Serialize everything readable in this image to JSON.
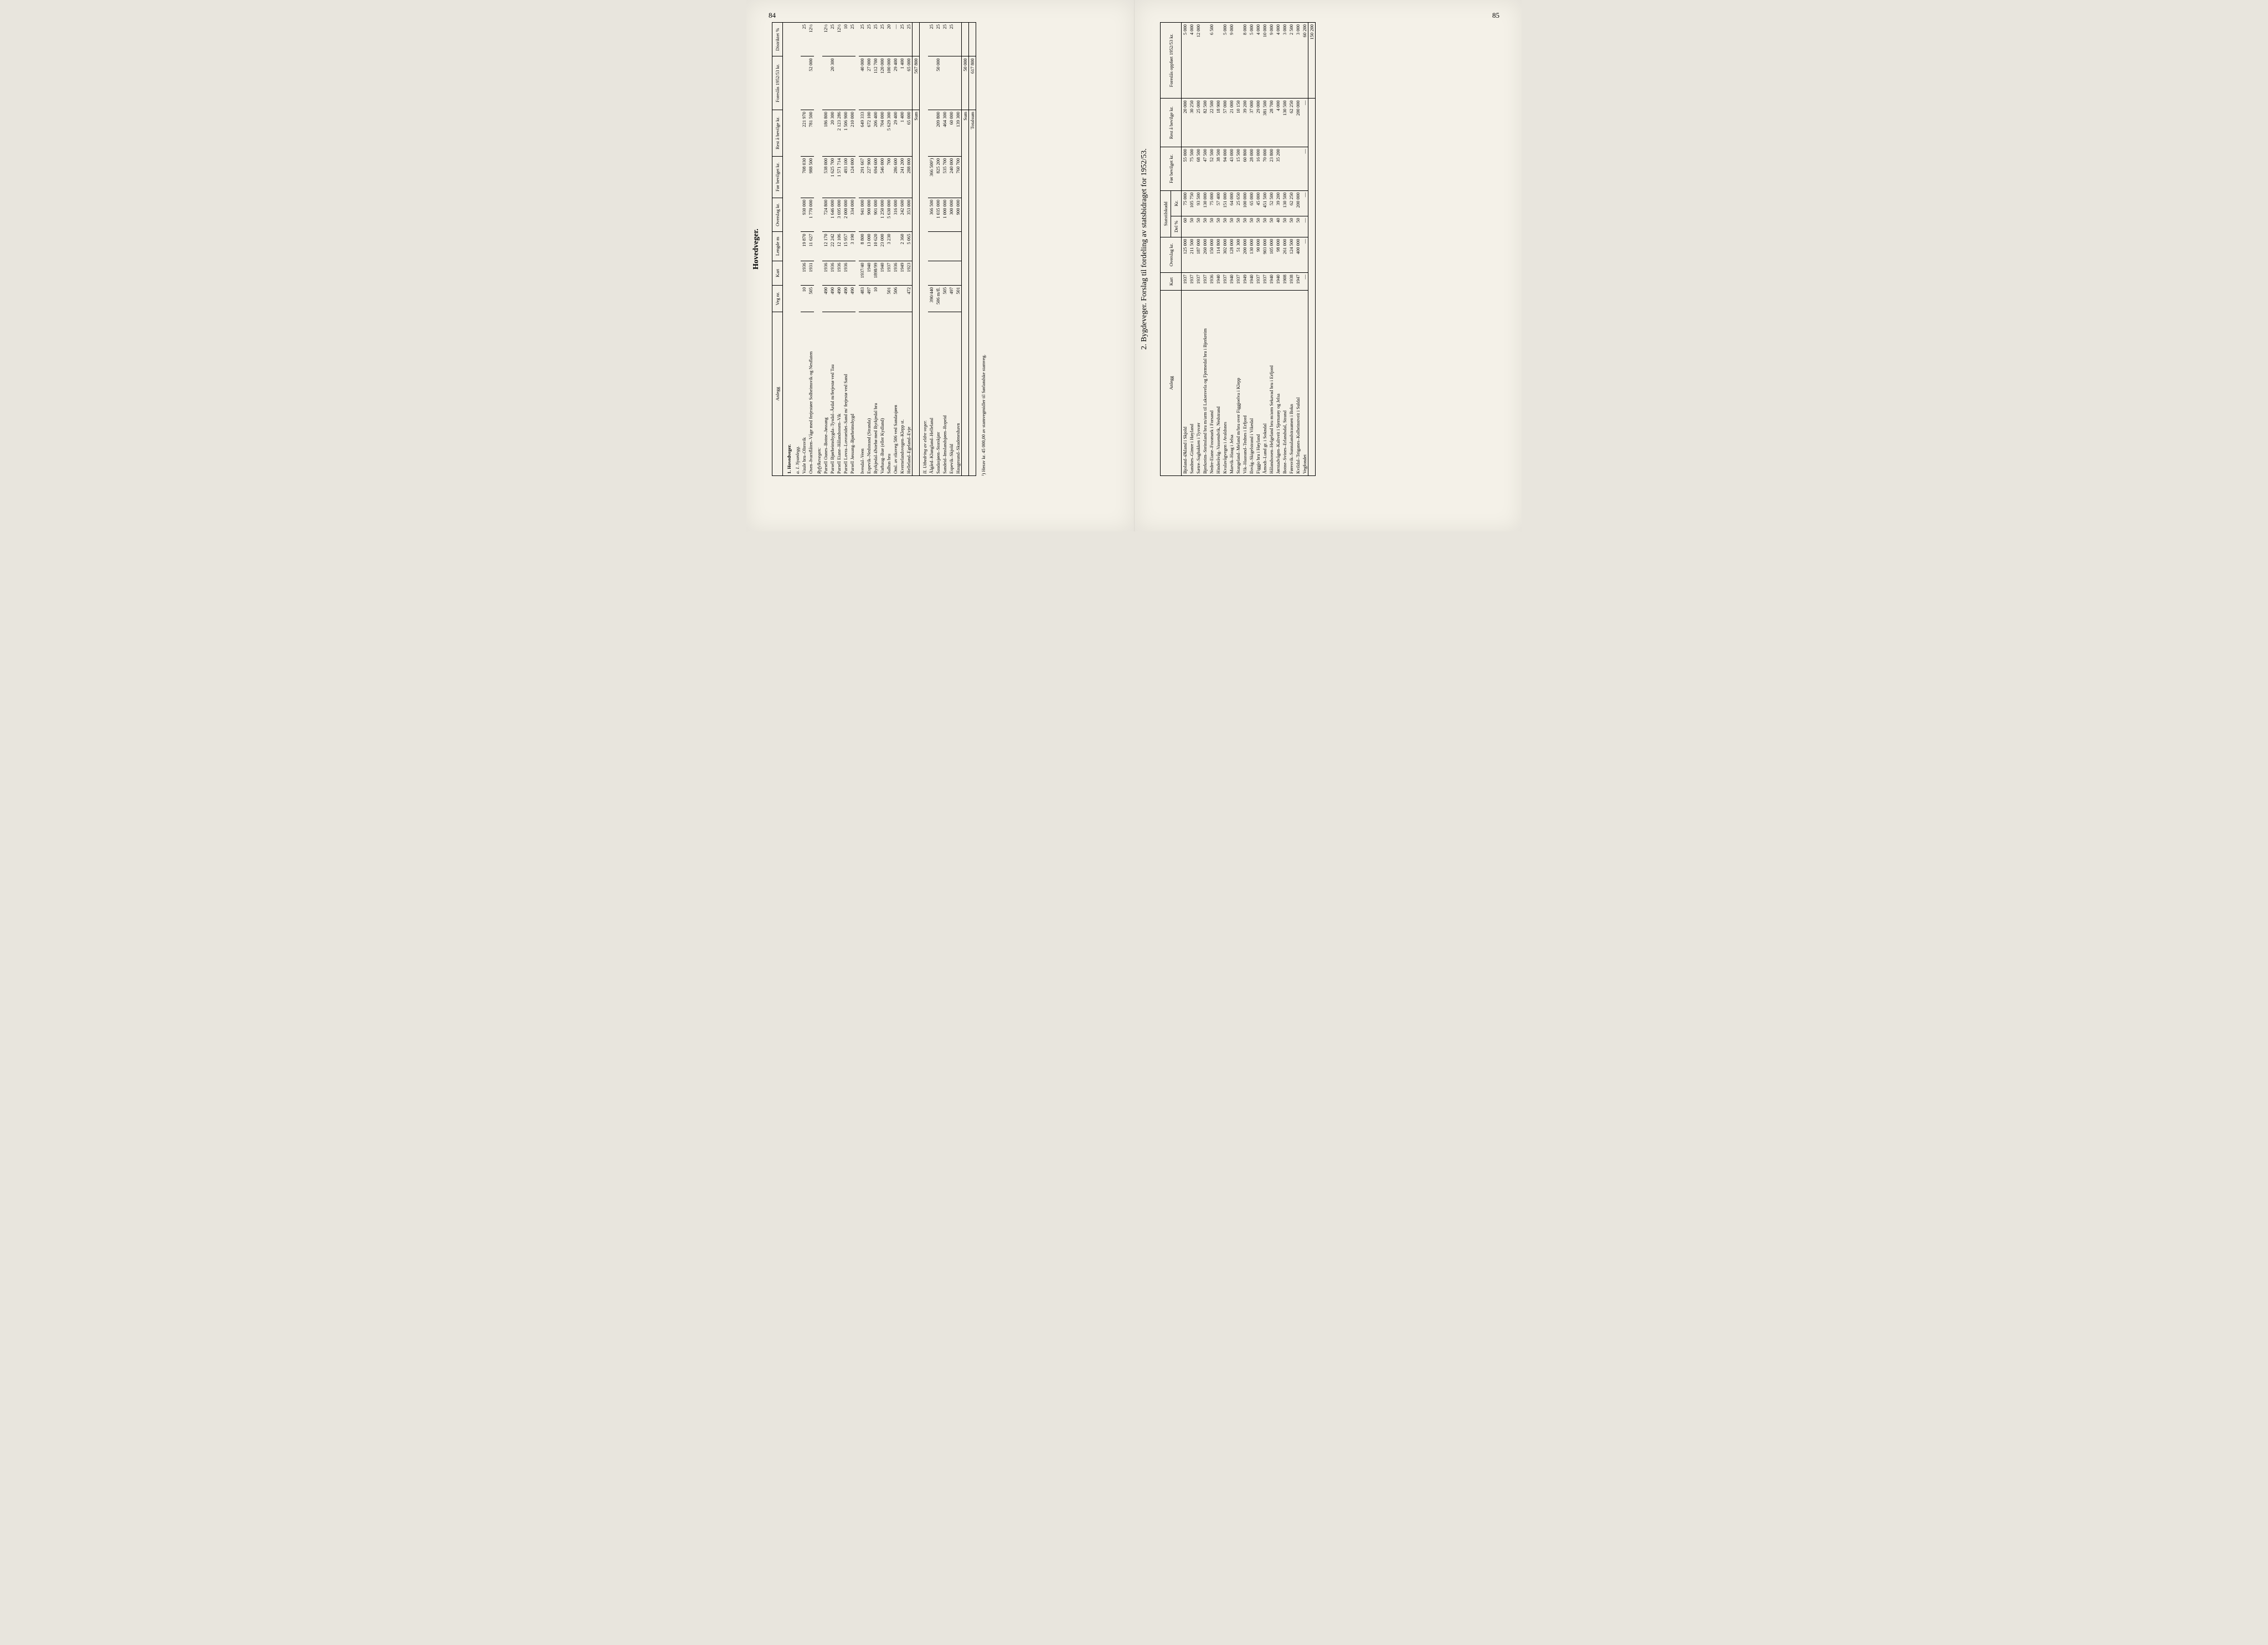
{
  "page_left_num": "84",
  "page_right_num": "85",
  "left": {
    "title": "Hovedveger.",
    "headers": [
      "Anlegg",
      "Veg nr.",
      "Kart",
      "Lengde m",
      "Overslag kr.",
      "Før bevilget kr.",
      "Rest å bevilge kr.",
      "Foreslås 1952/53 kr.",
      "Distriktet %"
    ],
    "section1": "1.  Hovedveger.",
    "sub_a": "a.  I. Nyanlegg.",
    "rows_a": [
      {
        "name": "Vaule bru–Oltesvik",
        "veg": "10",
        "kart": "1936",
        "len": "19 870",
        "ovs": "930 000",
        "for": "708 030",
        "rest": "221 970",
        "fores": "",
        "pct": "25"
      },
      {
        "name": "Osen–Ivarsflåten–Våge med ferjestøer Solheimsvik og Nesflaten",
        "veg": "505",
        "kart": "1931",
        "len": "11 627",
        "ovs": "1 770 000",
        "for": "988 500",
        "rest": "781 500",
        "fores": "52 000",
        "pct": "12½"
      }
    ],
    "ryf_head": "Ryfylkevegen:",
    "rows_ryf": [
      {
        "name": "Parsell Oanes–Botne–Jøssang",
        "veg": "490",
        "kart": "1936",
        "len": "12 170",
        "ovs": "724 800",
        "for": "538 000",
        "rest": "186 800",
        "fores": "",
        "pct": "12½"
      },
      {
        "name": "Parsell Bjørheimsbygda–Tysdal–Årdal m/ferjestø ved Tau",
        "veg": "490",
        "kart": "1936",
        "len": "22 242",
        "ovs": "1 646 000",
        "for": "1 625 700",
        "rest": "20 300",
        "fores": "20 300",
        "pct": "25"
      },
      {
        "name": "Parsell Eiane–Hålandsosen–Vik",
        "veg": "490",
        "kart": "1936",
        "len": "12 106",
        "ovs": "3 695 000",
        "for": "1 571 714",
        "rest": "2 123 286",
        "fores": "",
        "pct": "12½"
      },
      {
        "name": "Parsell Lovra–Lovraeidet–Sand m/ ferjestø ved Sand",
        "veg": "490",
        "kart": "1936",
        "len": "15 957",
        "ovs": "2 000 000",
        "for": "493 100",
        "rest": "1 506 900",
        "fores": "",
        "pct": "10"
      },
      {
        "name": "Parsell Jøssang–Bjørheimsbygd",
        "veg": "490",
        "kart": "",
        "len": "3 190",
        "ovs": "334 000",
        "for": "124 000",
        "rest": "210 000",
        "fores": "",
        "pct": "25"
      }
    ],
    "rows_a2": [
      {
        "name": "Ivesdal–Veen",
        "veg": "483",
        "kart": "1937/40",
        "len": "8 800",
        "ovs": "941 000",
        "for": "291 667",
        "rest": "649 333",
        "fores": "40 000",
        "pct": "25"
      },
      {
        "name": "Espevik–Nedstrand (Stranda)",
        "veg": "497",
        "kart": "1940",
        "len": "13 000",
        "ovs": "900 000",
        "for": "227 900",
        "rest": "672 100",
        "fores": "27 000",
        "pct": "25"
      },
      {
        "name": "Byrkjedal–Østebø med Byrkjedal bru",
        "veg": "10",
        "kart": "1898/99",
        "len": "10 620",
        "ovs": "901 000",
        "for": "694 600",
        "rest": "206 400",
        "fores": "112 700",
        "pct": "25"
      },
      {
        "name": "Varhaug–Bue (eller Kydland)",
        "veg": "",
        "kart": "1940",
        "len": "23 000",
        "ovs": "1 250 000",
        "for": "546 000",
        "rest": "704 000",
        "fores": "120 000",
        "pct": "25"
      },
      {
        "name": "Salhus bru",
        "veg": "501",
        "kart": "1937",
        "len": "3 230",
        "ovs": "5 630 000",
        "for": "700",
        "rest": "5 629 300",
        "fores": "100 000",
        "pct": "20"
      },
      {
        "name": "Oml. av riksveg 506 ved Sandasjøen",
        "veg": "506",
        "kart": "1936",
        "len": "",
        "ovs": "316 000",
        "for": "286 600",
        "rest": "29 400",
        "fores": "29 400",
        "pct": "—"
      },
      {
        "name": "Kvernelandsvegen–Klepp st.",
        "veg": "",
        "kart": "1949",
        "len": "2 360",
        "ovs": "242 600",
        "for": "241 200",
        "rest": "1 400",
        "fores": "1 400",
        "pct": "25"
      },
      {
        "name": "Helleland–Egeland–Evje",
        "veg": "472",
        "kart": "1923",
        "len": "5 065",
        "ovs": "353 000",
        "for": "288 000",
        "rest": "65 000",
        "fores": "65 000",
        "pct": "25"
      }
    ],
    "sum1_label": "Sum",
    "sum1_val": "567 800",
    "sub_b": "II.  Utbedring av eldre veger.",
    "rows_b": [
      {
        "name": "Ålgård–Klungland–Helleland",
        "veg": "390/440",
        "kart": "",
        "len": "",
        "ovs": "366 500",
        "for": "366 500¹)",
        "rest": "",
        "fores": "",
        "pct": "25"
      },
      {
        "name": "Saudasjøen–Storskjær",
        "veg": "506 m/fl.",
        "kart": "",
        "len": "",
        "ovs": "1 035 000",
        "for": "825 200",
        "rest": "209 800",
        "fores": "50 000",
        "pct": "25"
      },
      {
        "name": "Sandeid–Imslandsjøen–Ropeid",
        "veg": "505",
        "kart": "",
        "len": "",
        "ovs": "1 000 000",
        "for": "535 700",
        "rest": "464 300",
        "fores": "",
        "pct": "25"
      },
      {
        "name": "Espevik–Skjold",
        "veg": "497",
        "kart": "",
        "len": "",
        "ovs": "300 000",
        "for": "240 000",
        "rest": "60 000",
        "fores": "",
        "pct": "25"
      },
      {
        "name": "Haugesund–Skudeneshavn",
        "veg": "501",
        "kart": "",
        "len": "",
        "ovs": "900 000",
        "for": "760 700",
        "rest": "139 300",
        "fores": "",
        "pct": ""
      }
    ],
    "sum2_label": "Sum",
    "sum2_val": "50 000",
    "grand_label": "Totalsum",
    "grand_val": "617 800",
    "footnote": "¹) Herav kr. 45 000,00 av stamvegmidler til Sørlandske stamveg."
  },
  "right": {
    "title": "2.  Bygdeveger.   Forslag til fordeling av statsbidraget for 1952/53.",
    "headers": [
      "Anlegg",
      "Kart",
      "Overslag kr.",
      "Del %",
      "Kr.",
      "Før bevilget kr.",
      "Rest å bevilge kr.",
      "Foreslås oppført 1952/53 kr."
    ],
    "group_header": "Statstilskudd",
    "rows": [
      {
        "name": "Bjoland–Økland i Skjold",
        "kart": "1937",
        "ovs": "125 000",
        "pct": "60",
        "kr": "75 000",
        "for": "55 000",
        "rest": "20 000",
        "fores": "5 000"
      },
      {
        "name": "Sandnes–Gimre i Høyland",
        "kart": "1937",
        "ovs": "211 500",
        "pct": "50",
        "kr": "105 750",
        "for": "75 500",
        "rest": "30 250",
        "fores": "4 000"
      },
      {
        "name": "Sætre–Sagbakken i Tysvær",
        "kart": "1937",
        "ovs": "187 000",
        "pct": "50",
        "kr": "93 500",
        "for": "68 500",
        "rest": "25 000",
        "fores": "12 000"
      },
      {
        "name": "Bjerkreim–Steinsland bru m/arm til Laksesvela og Fjermedal bru i Bjerkreim",
        "kart": "1937",
        "ovs": "260 000",
        "pct": "50",
        "kr": "130 000",
        "for": "47 500",
        "rest": "82 500",
        "fores": ""
      },
      {
        "name": "Nedre-Eiane–Fossmark i Forsand",
        "kart": "1936",
        "ovs": "150 000",
        "pct": "50",
        "kr": "75 000",
        "for": "52 500",
        "rest": "22 500",
        "fores": "6 500"
      },
      {
        "name": "Hinderåvåg–Vassendvik, Nedstrand",
        "kart": "1940",
        "ovs": "114 800",
        "pct": "50",
        "kr": "57 400",
        "for": "38 500",
        "rest": "18 900",
        "fores": ""
      },
      {
        "name": "Kvalavågvegen i Avaldsnes",
        "kart": "1937",
        "ovs": "302 000",
        "pct": "50",
        "kr": "151 000",
        "for": "94 000",
        "rest": "57 000",
        "fores": "5 000"
      },
      {
        "name": "Marvik–Haug i Jelsa",
        "kart": "1940",
        "ovs": "128 000",
        "pct": "50",
        "kr": "64 000",
        "for": "43 000",
        "rest": "21 000",
        "fores": "9 000"
      },
      {
        "name": "Stangeland–Meland m/bru over Figgjoelva i Klepp",
        "kart": "1937",
        "ovs": "51 300",
        "pct": "50",
        "kr": "25 650",
        "for": "15 500",
        "rest": "10 150",
        "fores": ""
      },
      {
        "name": "Vik–Haasund–Tednes i Erfjord",
        "kart": "1949",
        "ovs": "200 000",
        "pct": "50",
        "kr": "100 000",
        "for": "60 800",
        "rest": "39 200",
        "fores": "8 000"
      },
      {
        "name": "Ilsvåg–Skigelstrand i Vikedal",
        "kart": "1940",
        "ovs": "130 000",
        "pct": "50",
        "kr": "65 000",
        "for": "28 000",
        "rest": "37 000",
        "fores": "5 000"
      },
      {
        "name": "Figgjo bru i Høyland",
        "kart": "1937",
        "ovs": "90 000",
        "pct": "50",
        "kr": "45 000",
        "for": "16 000",
        "rest": "29 000",
        "fores": "4 000"
      },
      {
        "name": "Åmodt–Lund gr. i Sokndal",
        "kart": "1937",
        "ovs": "903 000",
        "pct": "50",
        "kr": "451 500",
        "for": "70 000",
        "rest": "381 500",
        "fores": "10 000"
      },
      {
        "name": "Hålandsosen–Helgeland bru m/arm Sekavad bru i Erfjord",
        "kart": "1940",
        "ovs": "105 000",
        "pct": "50",
        "kr": "52 500",
        "for": "23 800",
        "rest": "28 700",
        "fores": "9 000"
      },
      {
        "name": "Jørstadvågen–Kaltveit i Sjernarøy og Jelsa",
        "kart": "1940",
        "ovs": "98 000",
        "pct": "40",
        "kr": "39 200",
        "for": "35 200",
        "rest": "4 000",
        "fores": "4 000"
      },
      {
        "name": "Botne–Svines–Erlandsdal, Strand",
        "kart": "1908",
        "ovs": "261 000",
        "pct": "50",
        "kr": "130 500",
        "for": "",
        "rest": "130 500",
        "fores": "3 000"
      },
      {
        "name": "Føresvik–Sunnalandstraumen i Bokn",
        "kart": "1938",
        "ovs": "124 500",
        "pct": "50",
        "kr": "62 250",
        "for": "",
        "rest": "62 250",
        "fores": "2 500"
      },
      {
        "name": "Kvildal–Teiganes–Kolbeinstveit i Suldal",
        "kart": "1947",
        "ovs": "400 000",
        "pct": "50",
        "kr": "200 000",
        "for": "",
        "rest": "200 000",
        "fores": "3 000"
      },
      {
        "name": "Vegfondet",
        "kart": "—",
        "ovs": "—",
        "pct": "—",
        "kr": "—",
        "for": "—",
        "rest": "—",
        "fores": "60 200"
      }
    ],
    "total": "150 200"
  }
}
